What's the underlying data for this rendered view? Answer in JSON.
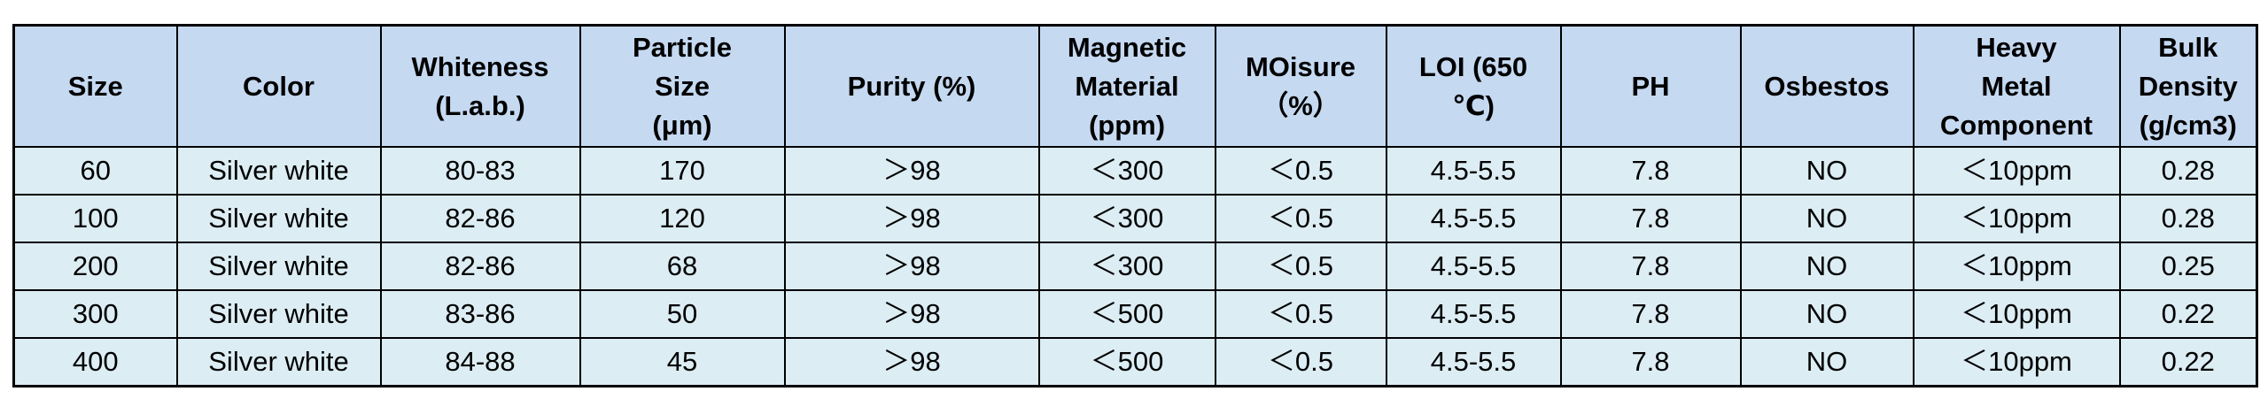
{
  "columns": [
    {
      "lines": [
        "Size"
      ]
    },
    {
      "lines": [
        "Color"
      ]
    },
    {
      "lines": [
        "Whiteness",
        "(L.a.b.)"
      ]
    },
    {
      "lines": [
        "Particle",
        "Size",
        "(μm)"
      ]
    },
    {
      "lines": [
        "Purity (%)"
      ]
    },
    {
      "lines": [
        "Magnetic",
        "Material",
        "(ppm)"
      ]
    },
    {
      "lines": [
        "MOisure",
        "（%）"
      ]
    },
    {
      "lines": [
        "LOI (650",
        "℃)"
      ]
    },
    {
      "lines": [
        "PH"
      ]
    },
    {
      "lines": [
        "Osbestos"
      ]
    },
    {
      "lines": [
        "Heavy",
        "Metal",
        "Component"
      ]
    },
    {
      "lines": [
        "Bulk",
        "Density",
        "(g/cm3)"
      ]
    }
  ],
  "rows": [
    [
      "60",
      "Silver white",
      "80-83",
      "170",
      "＞98",
      "＜300",
      "＜0.5",
      "4.5-5.5",
      "7.8",
      "NO",
      "＜10ppm",
      "0.28"
    ],
    [
      "100",
      "Silver white",
      "82-86",
      "120",
      "＞98",
      "＜300",
      "＜0.5",
      "4.5-5.5",
      "7.8",
      "NO",
      "＜10ppm",
      "0.28"
    ],
    [
      "200",
      "Silver white",
      "82-86",
      "68",
      "＞98",
      "＜300",
      "＜0.5",
      "4.5-5.5",
      "7.8",
      "NO",
      "＜10ppm",
      "0.25"
    ],
    [
      "300",
      "Silver white",
      "83-86",
      "50",
      "＞98",
      "＜500",
      "＜0.5",
      "4.5-5.5",
      "7.8",
      "NO",
      "＜10ppm",
      "0.22"
    ],
    [
      "400",
      "Silver white",
      "84-88",
      "45",
      "＞98",
      "＜500",
      "＜0.5",
      "4.5-5.5",
      "7.8",
      "NO",
      "＜10ppm",
      "0.22"
    ]
  ],
  "colors": {
    "header_bg": "#c5d9f1",
    "row_bg": "#dcedf4",
    "border": "#000000"
  }
}
